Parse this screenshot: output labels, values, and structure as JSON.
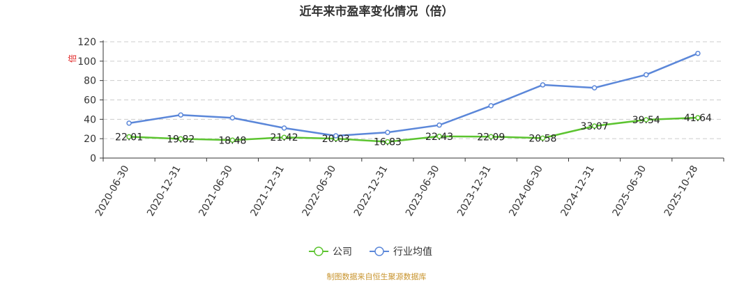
{
  "chart_data": {
    "type": "line",
    "title": "近年来市盈率变化情况（倍）",
    "ylabel": "倍",
    "ylim": [
      0,
      120
    ],
    "yticks": [
      0,
      20,
      40,
      60,
      80,
      100,
      120
    ],
    "grid": true,
    "categories": [
      "2020-06-30",
      "2020-12-31",
      "2021-06-30",
      "2021-12-31",
      "2022-06-30",
      "2022-12-31",
      "2023-06-30",
      "2023-12-31",
      "2024-06-30",
      "2024-12-31",
      "2025-06-30",
      "2025-10-28"
    ],
    "series": [
      {
        "name": "公司",
        "color": "#5cc430",
        "values": [
          22.01,
          19.82,
          18.48,
          21.42,
          20.03,
          16.83,
          22.43,
          22.09,
          20.58,
          33.07,
          39.54,
          41.64
        ],
        "labels": [
          "22.01",
          "19.82",
          "18.48",
          "21.42",
          "20.03",
          "16.83",
          "22.43",
          "22.09",
          "20.58",
          "33.07",
          "39.54",
          "41.64"
        ]
      },
      {
        "name": "行业均值",
        "color": "#5b87d9",
        "values": [
          36,
          44.5,
          41.5,
          31,
          23,
          26.5,
          34,
          54,
          75.5,
          72.5,
          86,
          108
        ]
      }
    ],
    "legend_position": "bottom-center"
  },
  "source_note": "制图数据来自恒生聚源数据库"
}
